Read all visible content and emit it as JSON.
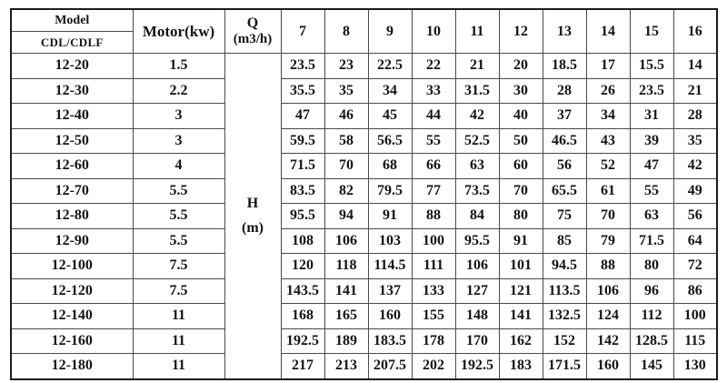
{
  "header": {
    "model_label": "Model",
    "model_series": "CDL/CDLF",
    "motor_label": "Motor(kw)",
    "q_line1": "Q",
    "q_line2": "(m3/h)",
    "h_line1": "H",
    "h_line2": "(m)"
  },
  "chart_data": {
    "type": "table",
    "xlabel": "Q (m3/h)",
    "ylabel": "H (m)",
    "x": [
      7,
      8,
      9,
      10,
      11,
      12,
      13,
      14,
      15,
      16
    ],
    "rows": [
      {
        "model": "12-20",
        "motor_kw": 1.5,
        "head_m": [
          23.5,
          23,
          22.5,
          22,
          21,
          20,
          18.5,
          17,
          15.5,
          14
        ]
      },
      {
        "model": "12-30",
        "motor_kw": 2.2,
        "head_m": [
          35.5,
          35,
          34,
          33,
          31.5,
          30,
          28,
          26,
          23.5,
          21
        ]
      },
      {
        "model": "12-40",
        "motor_kw": 3,
        "head_m": [
          47,
          46,
          45,
          44,
          42,
          40,
          37,
          34,
          31,
          28
        ]
      },
      {
        "model": "12-50",
        "motor_kw": 3,
        "head_m": [
          59.5,
          58,
          56.5,
          55,
          52.5,
          50,
          46.5,
          43,
          39,
          35
        ]
      },
      {
        "model": "12-60",
        "motor_kw": 4,
        "head_m": [
          71.5,
          70,
          68,
          66,
          63,
          60,
          56,
          52,
          47,
          42
        ]
      },
      {
        "model": "12-70",
        "motor_kw": 5.5,
        "head_m": [
          83.5,
          82,
          79.5,
          77,
          73.5,
          70,
          65.5,
          61,
          55,
          49
        ]
      },
      {
        "model": "12-80",
        "motor_kw": 5.5,
        "head_m": [
          95.5,
          94,
          91,
          88,
          84,
          80,
          75,
          70,
          63,
          56
        ]
      },
      {
        "model": "12-90",
        "motor_kw": 5.5,
        "head_m": [
          108,
          106,
          103,
          100,
          95.5,
          91,
          85,
          79,
          71.5,
          64
        ]
      },
      {
        "model": "12-100",
        "motor_kw": 7.5,
        "head_m": [
          120,
          118,
          114.5,
          111,
          106,
          101,
          94.5,
          88,
          80,
          72
        ]
      },
      {
        "model": "12-120",
        "motor_kw": 7.5,
        "head_m": [
          143.5,
          141,
          137,
          133,
          127,
          121,
          113.5,
          106,
          96,
          86
        ]
      },
      {
        "model": "12-140",
        "motor_kw": 11,
        "head_m": [
          168,
          165,
          160,
          155,
          148,
          141,
          132.5,
          124,
          112,
          100
        ]
      },
      {
        "model": "12-160",
        "motor_kw": 11,
        "head_m": [
          192.5,
          189,
          183.5,
          178,
          170,
          162,
          152,
          142,
          128.5,
          115
        ]
      },
      {
        "model": "12-180",
        "motor_kw": 11,
        "head_m": [
          217,
          213,
          207.5,
          202,
          192.5,
          183,
          171.5,
          160,
          145,
          130
        ]
      }
    ]
  },
  "colors": {
    "background": "#ffffff",
    "border_outer": "#1c1c1c",
    "border_inner": "#4a4a4a",
    "text": "#141414"
  }
}
